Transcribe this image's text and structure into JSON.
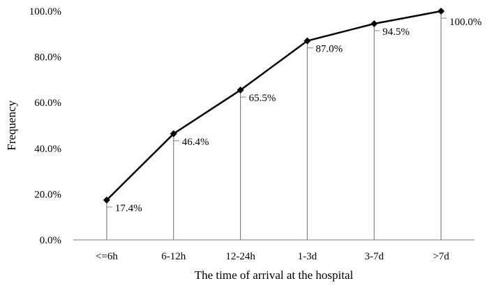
{
  "chart_data": {
    "type": "line",
    "categories": [
      "<=6h",
      "6-12h",
      "12-24h",
      "1-3d",
      "3-7d",
      ">7d"
    ],
    "values": [
      17.4,
      46.4,
      65.5,
      87.0,
      94.5,
      100.0
    ],
    "data_labels": [
      "17.4%",
      "46.4%",
      "65.5%",
      "87.0%",
      "94.5%",
      "100.0%"
    ],
    "xlabel": "The time of arrival at the hospital",
    "ylabel": "Frequency",
    "ylim": [
      0,
      100
    ],
    "yticks": [
      0,
      20,
      40,
      60,
      80,
      100
    ],
    "ytick_labels": [
      "0.0%",
      "20.0%",
      "40.0%",
      "60.0%",
      "80.0%",
      "100.0%"
    ],
    "grid": false,
    "drop_lines": true,
    "marker": "diamond",
    "colors": {
      "line": "#000000",
      "drop_line": "#808080",
      "axis": "#808080"
    }
  }
}
